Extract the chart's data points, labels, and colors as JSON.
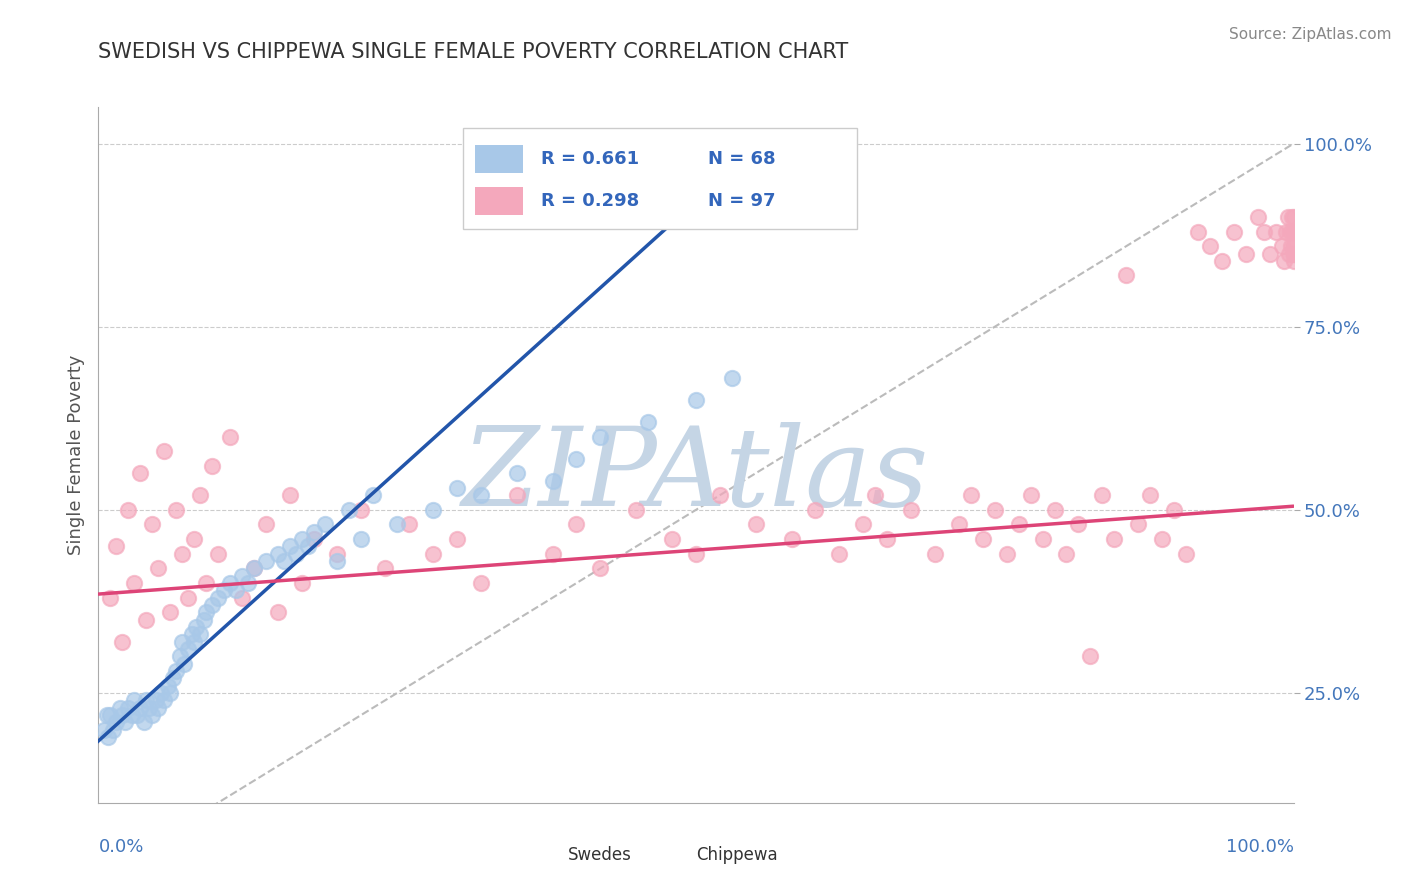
{
  "title": "SWEDISH VS CHIPPEWA SINGLE FEMALE POVERTY CORRELATION CHART",
  "source": "Source: ZipAtlas.com",
  "ylabel": "Single Female Poverty",
  "ylabel_right_ticks": [
    "25.0%",
    "50.0%",
    "75.0%",
    "100.0%"
  ],
  "ylabel_right_vals": [
    0.25,
    0.5,
    0.75,
    1.0
  ],
  "legend_line1_r": "R = 0.661",
  "legend_line1_n": "N = 68",
  "legend_line2_r": "R = 0.298",
  "legend_line2_n": "N = 97",
  "swedes_color": "#A8C8E8",
  "chippewa_color": "#F4A8BC",
  "swedes_line_color": "#2255AA",
  "chippewa_line_color": "#DD4477",
  "ref_line_color": "#BBBBBB",
  "background_color": "#FFFFFF",
  "grid_color": "#CCCCCC",
  "watermark_text": "ZIPAtlas",
  "watermark_color": "#C5D5E5",
  "title_color": "#333333",
  "axis_label_color": "#4477BB",
  "legend_text_color": "#3366BB",
  "swedes_data_x": [
    0.005,
    0.007,
    0.008,
    0.01,
    0.012,
    0.015,
    0.018,
    0.02,
    0.022,
    0.025,
    0.028,
    0.03,
    0.032,
    0.035,
    0.038,
    0.04,
    0.042,
    0.045,
    0.048,
    0.05,
    0.052,
    0.055,
    0.058,
    0.06,
    0.062,
    0.065,
    0.068,
    0.07,
    0.072,
    0.075,
    0.078,
    0.08,
    0.082,
    0.085,
    0.088,
    0.09,
    0.095,
    0.1,
    0.105,
    0.11,
    0.115,
    0.12,
    0.125,
    0.13,
    0.14,
    0.15,
    0.155,
    0.16,
    0.165,
    0.17,
    0.175,
    0.18,
    0.19,
    0.2,
    0.21,
    0.22,
    0.23,
    0.25,
    0.28,
    0.3,
    0.32,
    0.35,
    0.38,
    0.4,
    0.42,
    0.46,
    0.5,
    0.53
  ],
  "swedes_data_y": [
    0.2,
    0.22,
    0.19,
    0.22,
    0.2,
    0.21,
    0.23,
    0.22,
    0.21,
    0.23,
    0.22,
    0.24,
    0.22,
    0.23,
    0.21,
    0.24,
    0.23,
    0.22,
    0.24,
    0.23,
    0.25,
    0.24,
    0.26,
    0.25,
    0.27,
    0.28,
    0.3,
    0.32,
    0.29,
    0.31,
    0.33,
    0.32,
    0.34,
    0.33,
    0.35,
    0.36,
    0.37,
    0.38,
    0.39,
    0.4,
    0.39,
    0.41,
    0.4,
    0.42,
    0.43,
    0.44,
    0.43,
    0.45,
    0.44,
    0.46,
    0.45,
    0.47,
    0.48,
    0.43,
    0.5,
    0.46,
    0.52,
    0.48,
    0.5,
    0.53,
    0.52,
    0.55,
    0.54,
    0.57,
    0.6,
    0.62,
    0.65,
    0.68
  ],
  "chippewa_data_x": [
    0.01,
    0.015,
    0.02,
    0.025,
    0.03,
    0.035,
    0.04,
    0.045,
    0.05,
    0.055,
    0.06,
    0.065,
    0.07,
    0.075,
    0.08,
    0.085,
    0.09,
    0.095,
    0.1,
    0.11,
    0.12,
    0.13,
    0.14,
    0.15,
    0.16,
    0.17,
    0.18,
    0.2,
    0.22,
    0.24,
    0.26,
    0.28,
    0.3,
    0.32,
    0.35,
    0.38,
    0.4,
    0.42,
    0.45,
    0.48,
    0.5,
    0.52,
    0.55,
    0.58,
    0.6,
    0.62,
    0.64,
    0.65,
    0.66,
    0.68,
    0.7,
    0.72,
    0.73,
    0.74,
    0.75,
    0.76,
    0.77,
    0.78,
    0.79,
    0.8,
    0.81,
    0.82,
    0.83,
    0.84,
    0.85,
    0.86,
    0.87,
    0.88,
    0.89,
    0.9,
    0.91,
    0.92,
    0.93,
    0.94,
    0.95,
    0.96,
    0.97,
    0.975,
    0.98,
    0.985,
    0.99,
    0.992,
    0.994,
    0.995,
    0.996,
    0.997,
    0.998,
    0.999,
    0.999,
    1.0,
    1.0,
    1.0,
    1.0,
    1.0,
    1.0,
    1.0,
    1.0
  ],
  "chippewa_data_y": [
    0.38,
    0.45,
    0.32,
    0.5,
    0.4,
    0.55,
    0.35,
    0.48,
    0.42,
    0.58,
    0.36,
    0.5,
    0.44,
    0.38,
    0.46,
    0.52,
    0.4,
    0.56,
    0.44,
    0.6,
    0.38,
    0.42,
    0.48,
    0.36,
    0.52,
    0.4,
    0.46,
    0.44,
    0.5,
    0.42,
    0.48,
    0.44,
    0.46,
    0.4,
    0.52,
    0.44,
    0.48,
    0.42,
    0.5,
    0.46,
    0.44,
    0.52,
    0.48,
    0.46,
    0.5,
    0.44,
    0.48,
    0.52,
    0.46,
    0.5,
    0.44,
    0.48,
    0.52,
    0.46,
    0.5,
    0.44,
    0.48,
    0.52,
    0.46,
    0.5,
    0.44,
    0.48,
    0.3,
    0.52,
    0.46,
    0.82,
    0.48,
    0.52,
    0.46,
    0.5,
    0.44,
    0.88,
    0.86,
    0.84,
    0.88,
    0.85,
    0.9,
    0.88,
    0.85,
    0.88,
    0.86,
    0.84,
    0.88,
    0.9,
    0.85,
    0.88,
    0.86,
    0.9,
    0.88,
    0.85,
    0.84,
    0.88,
    0.9,
    0.86,
    0.85,
    0.88,
    0.86
  ],
  "swedes_line_x": [
    -0.02,
    0.54
  ],
  "swedes_line_y": [
    0.155,
    0.98
  ],
  "chippewa_line_x": [
    0.0,
    1.0
  ],
  "chippewa_line_y": [
    0.385,
    0.505
  ],
  "ref_line_x": [
    0.0,
    1.0
  ],
  "ref_line_y": [
    0.0,
    1.0
  ],
  "xlim": [
    0.0,
    1.0
  ],
  "ylim": [
    0.1,
    1.05
  ]
}
